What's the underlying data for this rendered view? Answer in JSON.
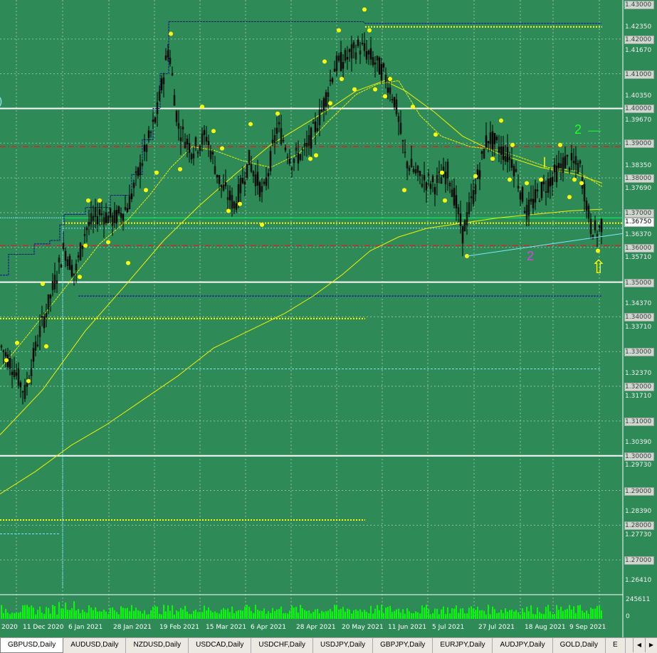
{
  "chart": {
    "background": "#2e8b57",
    "symbol": "GBPUSD",
    "timeframe": "Daily",
    "current_price": "1.36750",
    "price_labels": [
      {
        "text": "1.43000",
        "style": "boxed"
      },
      {
        "text": "1.42350",
        "style": "plain"
      },
      {
        "text": "1.42000",
        "style": "boxed"
      },
      {
        "text": "1.41670",
        "style": "plain"
      },
      {
        "text": "1.41000",
        "style": "boxed"
      },
      {
        "text": "1.40350",
        "style": "plain"
      },
      {
        "text": "1.40000",
        "style": "boxed"
      },
      {
        "text": "1.39670",
        "style": "plain"
      },
      {
        "text": "1.39000",
        "style": "boxed"
      },
      {
        "text": "1.38350",
        "style": "plain"
      },
      {
        "text": "1.38000",
        "style": "boxed"
      },
      {
        "text": "1.37690",
        "style": "plain"
      },
      {
        "text": "1.37000",
        "style": "boxed"
      },
      {
        "text": "1.36750",
        "style": "current"
      },
      {
        "text": "1.36370",
        "style": "plain"
      },
      {
        "text": "1.36000",
        "style": "boxed"
      },
      {
        "text": "1.35710",
        "style": "plain"
      },
      {
        "text": "1.35000",
        "style": "boxed"
      },
      {
        "text": "1.34370",
        "style": "plain"
      },
      {
        "text": "1.34000",
        "style": "boxed"
      },
      {
        "text": "1.33710",
        "style": "plain"
      },
      {
        "text": "1.33000",
        "style": "boxed"
      },
      {
        "text": "1.32370",
        "style": "plain"
      },
      {
        "text": "1.32000",
        "style": "boxed"
      },
      {
        "text": "1.31710",
        "style": "plain"
      },
      {
        "text": "1.31000",
        "style": "boxed"
      },
      {
        "text": "1.30390",
        "style": "plain"
      },
      {
        "text": "1.30000",
        "style": "boxed"
      },
      {
        "text": "1.29730",
        "style": "plain"
      },
      {
        "text": "1.29000",
        "style": "boxed"
      },
      {
        "text": "1.28390",
        "style": "plain"
      },
      {
        "text": "1.28000",
        "style": "boxed"
      },
      {
        "text": "1.27730",
        "style": "plain"
      },
      {
        "text": "1.27000",
        "style": "boxed"
      },
      {
        "text": "1.26410",
        "style": "plain"
      }
    ],
    "date_labels": [
      "2020",
      "11 Dec 2020",
      "6 Jan 2021",
      "28 Jan 2021",
      "19 Feb 2021",
      "15 Mar 2021",
      "6 Apr 2021",
      "28 Apr 2021",
      "20 May 2021",
      "11 Jun 2021",
      "5 Jul 2021",
      "27 Jul 2021",
      "18 Aug 2021",
      "9 Sep 2021"
    ],
    "volume_max": "245611",
    "volume_min": "0",
    "annotations": {
      "wave_label_green": "2",
      "wave_label_magenta": "2",
      "arrow_glyph": "⇧",
      "left_edge_glyph": ")"
    },
    "colors": {
      "bull_candle": "#000000",
      "bear_candle": "#000000",
      "grid": "#ffffff",
      "ma_line": "#f0f000",
      "dots": "#ffff00",
      "trendline": "#7fe6ff",
      "volume": "#00ff00",
      "level_white": "#ffffff",
      "level_red_dash": "#cc2a2a"
    }
  },
  "tabs": [
    {
      "label": "GBPUSD,Daily",
      "active": true
    },
    {
      "label": "AUDUSD,Daily",
      "active": false
    },
    {
      "label": "NZDUSD,Daily",
      "active": false
    },
    {
      "label": "USDCAD,Daily",
      "active": false
    },
    {
      "label": "USDCHF,Daily",
      "active": false
    },
    {
      "label": "USDJPY,Daily",
      "active": false
    },
    {
      "label": "GBPJPY,Daily",
      "active": false
    },
    {
      "label": "EURJPY,Daily",
      "active": false
    },
    {
      "label": "AUDJPY,Daily",
      "active": false
    },
    {
      "label": "GOLD,Daily",
      "active": false
    },
    {
      "label": "E",
      "active": false
    }
  ],
  "tab_scroll": {
    "left": "◀",
    "right": "▶"
  }
}
